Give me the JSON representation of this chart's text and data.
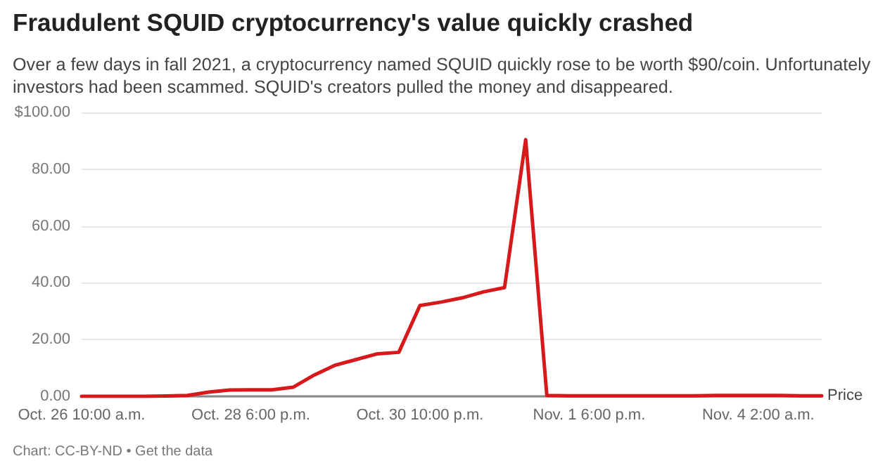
{
  "chart_data": {
    "type": "line",
    "title": "Fraudulent SQUID cryptocurrency's value quickly crashed",
    "subtitle": "Over a few days in fall 2021, a cryptocurrency named SQUID quickly rose to be worth $90/coin. Unfortunately investors had been scammed. SQUID's creators pulled the money and disappeared.",
    "categories": [
      "Oct. 26 10:00 a.m.",
      null,
      null,
      null,
      null,
      null,
      null,
      null,
      "Oct. 28 6:00 p.m.",
      null,
      null,
      null,
      null,
      null,
      null,
      null,
      "Oct. 30 10:00 p.m.",
      null,
      null,
      null,
      null,
      null,
      null,
      null,
      "Nov. 1 6:00 p.m.",
      null,
      null,
      null,
      null,
      null,
      null,
      null,
      "Nov. 4 2:00 a.m.",
      null,
      null,
      null
    ],
    "series": [
      {
        "name": "Price",
        "color": "#d7191c",
        "values": [
          0,
          0,
          0,
          0,
          0.1,
          0.3,
          1.5,
          2.2,
          2.3,
          2.3,
          3.2,
          7.5,
          11,
          13,
          15,
          15.5,
          32,
          33.2,
          34.7,
          36.8,
          38.3,
          90.4,
          0.3,
          0.2,
          0.2,
          0.2,
          0.2,
          0.2,
          0.2,
          0.2,
          0.3,
          0.3,
          0.3,
          0.3,
          0.2,
          0.2
        ]
      }
    ],
    "ylim": [
      0,
      100
    ],
    "yticks": [
      {
        "value": 0,
        "label": "0.00"
      },
      {
        "value": 20,
        "label": "20.00"
      },
      {
        "value": 40,
        "label": "40.00"
      },
      {
        "value": 60,
        "label": "60.00"
      },
      {
        "value": 80,
        "label": "80.00"
      },
      {
        "value": 100,
        "label": "$100.00"
      }
    ],
    "grid": "y",
    "legend": false,
    "marker": "none",
    "line_style": "solid",
    "annotations": [
      "Chart: CC-BY-ND • Get the data"
    ]
  }
}
